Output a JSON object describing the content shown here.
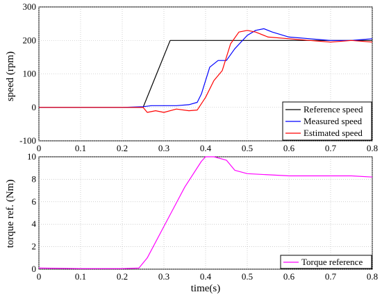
{
  "chart_data": [
    {
      "type": "line",
      "xlabel": "",
      "ylabel": "speed (rpm)",
      "xlim": [
        0,
        0.8
      ],
      "ylim": [
        -100,
        300
      ],
      "xticks": [
        "0",
        "0.1",
        "0.2",
        "0.3",
        "0.4",
        "0.5",
        "0.6",
        "0.7",
        "0.8"
      ],
      "yticks": [
        "-100",
        "0",
        "100",
        "200",
        "300"
      ],
      "grid": true,
      "legend_position": "bottom-right",
      "series": [
        {
          "name": "Reference speed",
          "color": "#000000",
          "x": [
            0,
            0.25,
            0.315,
            0.8
          ],
          "y": [
            0,
            0,
            200,
            200
          ]
        },
        {
          "name": "Measured speed",
          "color": "#0000ff",
          "x": [
            0,
            0.1,
            0.2,
            0.25,
            0.27,
            0.3,
            0.33,
            0.36,
            0.38,
            0.39,
            0.4,
            0.41,
            0.43,
            0.45,
            0.47,
            0.5,
            0.52,
            0.54,
            0.56,
            0.6,
            0.65,
            0.7,
            0.75,
            0.8
          ],
          "y": [
            0,
            0,
            0,
            2,
            5,
            5,
            5,
            8,
            15,
            40,
            80,
            120,
            140,
            140,
            175,
            215,
            230,
            235,
            225,
            210,
            205,
            200,
            200,
            205
          ]
        },
        {
          "name": "Estimated speed",
          "color": "#ff0000",
          "x": [
            0,
            0.1,
            0.2,
            0.25,
            0.26,
            0.28,
            0.3,
            0.33,
            0.36,
            0.38,
            0.4,
            0.42,
            0.44,
            0.46,
            0.48,
            0.5,
            0.52,
            0.55,
            0.6,
            0.65,
            0.7,
            0.75,
            0.8
          ],
          "y": [
            0,
            0,
            0,
            0,
            -15,
            -10,
            -15,
            -5,
            -10,
            -8,
            30,
            80,
            110,
            190,
            225,
            230,
            225,
            210,
            205,
            200,
            195,
            200,
            195
          ]
        }
      ]
    },
    {
      "type": "line",
      "xlabel": "time(s)",
      "ylabel": "torque ref. (Nm)",
      "xlim": [
        0,
        0.8
      ],
      "ylim": [
        0,
        10
      ],
      "xticks": [
        "0",
        "0.1",
        "0.2",
        "0.3",
        "0.4",
        "0.5",
        "0.6",
        "0.7",
        "0.8"
      ],
      "yticks": [
        "0",
        "2",
        "4",
        "6",
        "8",
        "10"
      ],
      "grid": true,
      "legend_position": "bottom-right",
      "series": [
        {
          "name": "Torque reference",
          "color": "#ff00ff",
          "x": [
            0,
            0.1,
            0.2,
            0.24,
            0.26,
            0.3,
            0.35,
            0.39,
            0.4,
            0.42,
            0.45,
            0.47,
            0.5,
            0.55,
            0.6,
            0.65,
            0.7,
            0.75,
            0.8
          ],
          "y": [
            0.1,
            0.05,
            0.05,
            0.1,
            1.0,
            3.8,
            7.3,
            9.6,
            10.0,
            10.0,
            9.7,
            8.8,
            8.5,
            8.4,
            8.3,
            8.3,
            8.3,
            8.3,
            8.2
          ]
        }
      ]
    }
  ]
}
